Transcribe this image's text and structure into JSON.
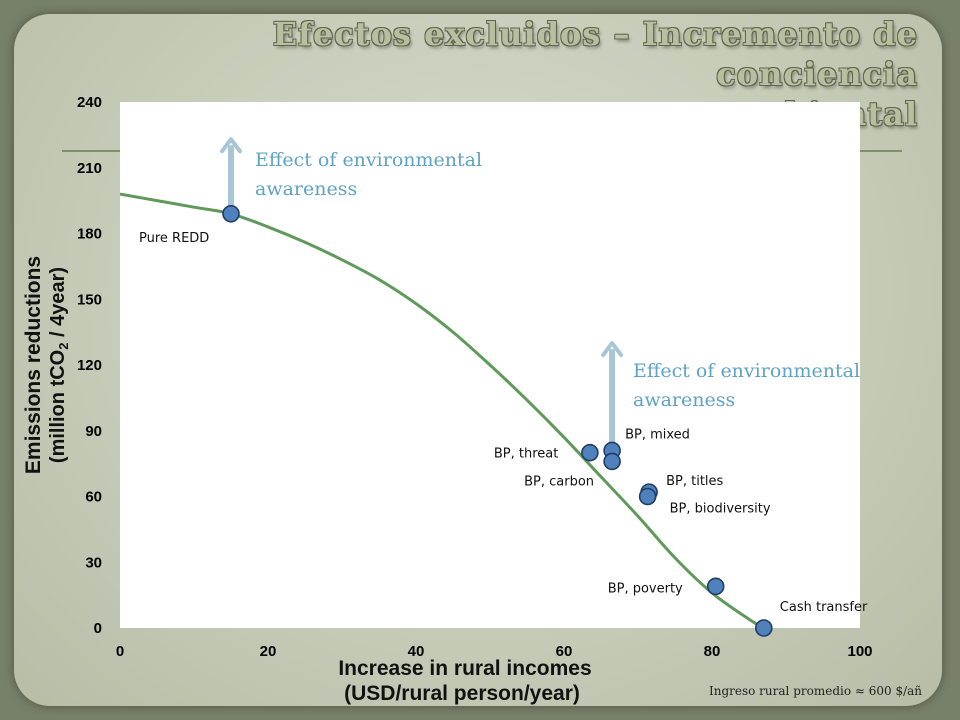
{
  "slide": {
    "title_line1": "Efectos excluidos – Incremento de conciencia",
    "title_line2": "ambiental",
    "footnote": "Ingreso rural promedio ≈ 600 $/añ"
  },
  "chart_data": {
    "type": "scatter",
    "xlabel_line1": "Increase in rural incomes",
    "xlabel_line2": "(USD/rural person/year)",
    "ylabel_line1": "Emissions reductions",
    "ylabel_line2_pre": "(million tCO",
    "ylabel_line2_sub": "2",
    "ylabel_line2_post": " / 4year)",
    "xlim": [
      0,
      100
    ],
    "ylim": [
      0,
      240
    ],
    "x_ticks": [
      0,
      20,
      40,
      60,
      80,
      100
    ],
    "y_ticks": [
      0,
      30,
      60,
      90,
      120,
      150,
      180,
      210,
      240
    ],
    "grid": false,
    "legend": "none",
    "colors": {
      "curve": "#5f9a5a",
      "point_fill": "#4f81bd",
      "point_stroke": "#1f3d66",
      "arrow": "#a8c6d6",
      "annotation": "#5fa3c4"
    },
    "frontier": {
      "x": [
        0,
        5,
        10,
        15,
        20,
        25,
        30,
        35,
        40,
        45,
        50,
        55,
        60,
        65,
        70,
        75,
        80,
        85,
        87
      ],
      "y": [
        198,
        195,
        192,
        189,
        183,
        176,
        168,
        159,
        148,
        135,
        120,
        104,
        87,
        69,
        51,
        32,
        16,
        4,
        0
      ]
    },
    "points": [
      {
        "label": "Pure REDD",
        "x": 15,
        "y": 189
      },
      {
        "label": "BP, threat",
        "x": 63.5,
        "y": 80
      },
      {
        "label": "BP, mixed",
        "x": 66.5,
        "y": 81
      },
      {
        "label": "BP, carbon",
        "x": 66.5,
        "y": 76
      },
      {
        "label": "BP, titles",
        "x": 71.5,
        "y": 62
      },
      {
        "label": "BP, biodiversity",
        "x": 71.3,
        "y": 60
      },
      {
        "label": "BP, poverty",
        "x": 80.5,
        "y": 19
      },
      {
        "label": "Cash transfer",
        "x": 87,
        "y": 0
      }
    ],
    "annotations": [
      {
        "line1": "Effect of environmental",
        "line2": "awareness",
        "x": 15,
        "y_from": 190,
        "y_to": 223
      },
      {
        "line1": "Effect of environmental",
        "line2": "awareness",
        "x": 66.5,
        "y_from": 82,
        "y_to": 130
      }
    ]
  }
}
